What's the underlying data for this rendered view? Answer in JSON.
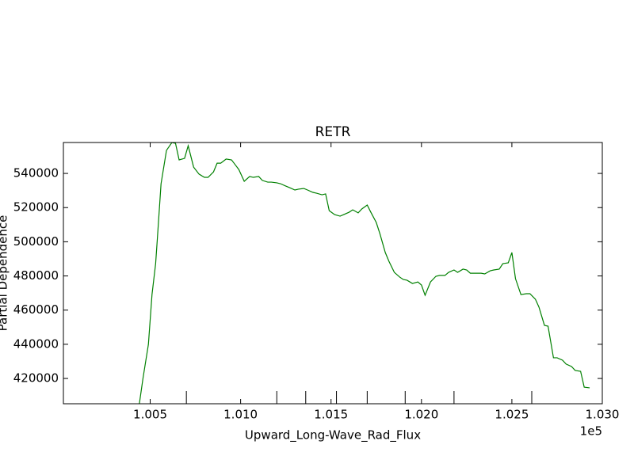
{
  "chart_data": {
    "type": "line",
    "title": "RETR",
    "x_label": "Upward_Long-Wave_Rad_Flux",
    "y_label": "Partial Dependence",
    "x_offset_label": "1e5",
    "color": "#008000",
    "x": [
      1.0042,
      1.0044,
      1.0046,
      1.0049,
      1.0051,
      1.0053,
      1.0054,
      1.0056,
      1.0059,
      1.0062,
      1.0064,
      1.0066,
      1.0069,
      1.0071,
      1.0074,
      1.0077,
      1.008,
      1.0082,
      1.0085,
      1.0087,
      1.0089,
      1.0092,
      1.0095,
      1.0097,
      1.0099,
      1.0102,
      1.0105,
      1.0107,
      1.011,
      1.0112,
      1.0115,
      1.0117,
      1.012,
      1.0122,
      1.0125,
      1.0127,
      1.013,
      1.0132,
      1.0135,
      1.0137,
      1.014,
      1.0142,
      1.0145,
      1.0147,
      1.0149,
      1.0152,
      1.0155,
      1.0157,
      1.016,
      1.0162,
      1.0165,
      1.0167,
      1.017,
      1.0172,
      1.0175,
      1.0177,
      1.018,
      1.0182,
      1.0185,
      1.0188,
      1.019,
      1.0192,
      1.0195,
      1.0198,
      1.02,
      1.0202,
      1.0205,
      1.0208,
      1.021,
      1.0213,
      1.0215,
      1.0218,
      1.022,
      1.0223,
      1.0225,
      1.0227,
      1.023,
      1.0233,
      1.0235,
      1.0238,
      1.024,
      1.0243,
      1.0245,
      1.0248,
      1.025,
      1.0252,
      1.0255,
      1.0258,
      1.026,
      1.0263,
      1.0265,
      1.0268,
      1.027,
      1.0273,
      1.0275,
      1.0278,
      1.028,
      1.0283,
      1.0285,
      1.0288,
      1.029,
      1.0293
    ],
    "values": [
      393600,
      405200,
      420000,
      439900,
      469100,
      487200,
      502500,
      534000,
      553500,
      558100,
      557600,
      547900,
      548800,
      556200,
      543700,
      539600,
      537700,
      537700,
      540900,
      546000,
      546000,
      548400,
      547900,
      545100,
      542300,
      535400,
      538200,
      537700,
      538200,
      535900,
      534900,
      534900,
      534500,
      534000,
      532600,
      531700,
      530300,
      530800,
      531200,
      530300,
      528900,
      528400,
      527500,
      528000,
      518200,
      515900,
      515000,
      515900,
      517300,
      518700,
      516900,
      519200,
      521500,
      517300,
      511300,
      504800,
      493700,
      488600,
      482100,
      479300,
      477900,
      477500,
      475600,
      476500,
      474700,
      468700,
      476500,
      479800,
      480300,
      480300,
      482100,
      483500,
      482100,
      484000,
      483500,
      481600,
      481600,
      481600,
      481200,
      483000,
      483500,
      484000,
      487200,
      487700,
      493700,
      478400,
      469100,
      469600,
      469600,
      466400,
      461700,
      451100,
      450600,
      432100,
      432100,
      430700,
      428400,
      427000,
      424700,
      424200,
      414900,
      414500
    ],
    "deciles": [
      1.007,
      1.012,
      1.0136,
      1.0153,
      1.017,
      1.0191,
      1.0218,
      1.0261
    ],
    "xlim": [
      1.0002,
      1.03
    ],
    "xticks": [
      1.005,
      {
        "value": 1.01,
        "label": "1.010"
      },
      1.015,
      {
        "value": 1.02,
        "label": "1.020"
      },
      1.025,
      {
        "value": 1.03,
        "label": "1.030"
      }
    ],
    "ylim": [
      405200,
      558100
    ],
    "yticks": [
      420000,
      440000,
      460000,
      480000,
      500000,
      520000,
      540000
    ]
  }
}
